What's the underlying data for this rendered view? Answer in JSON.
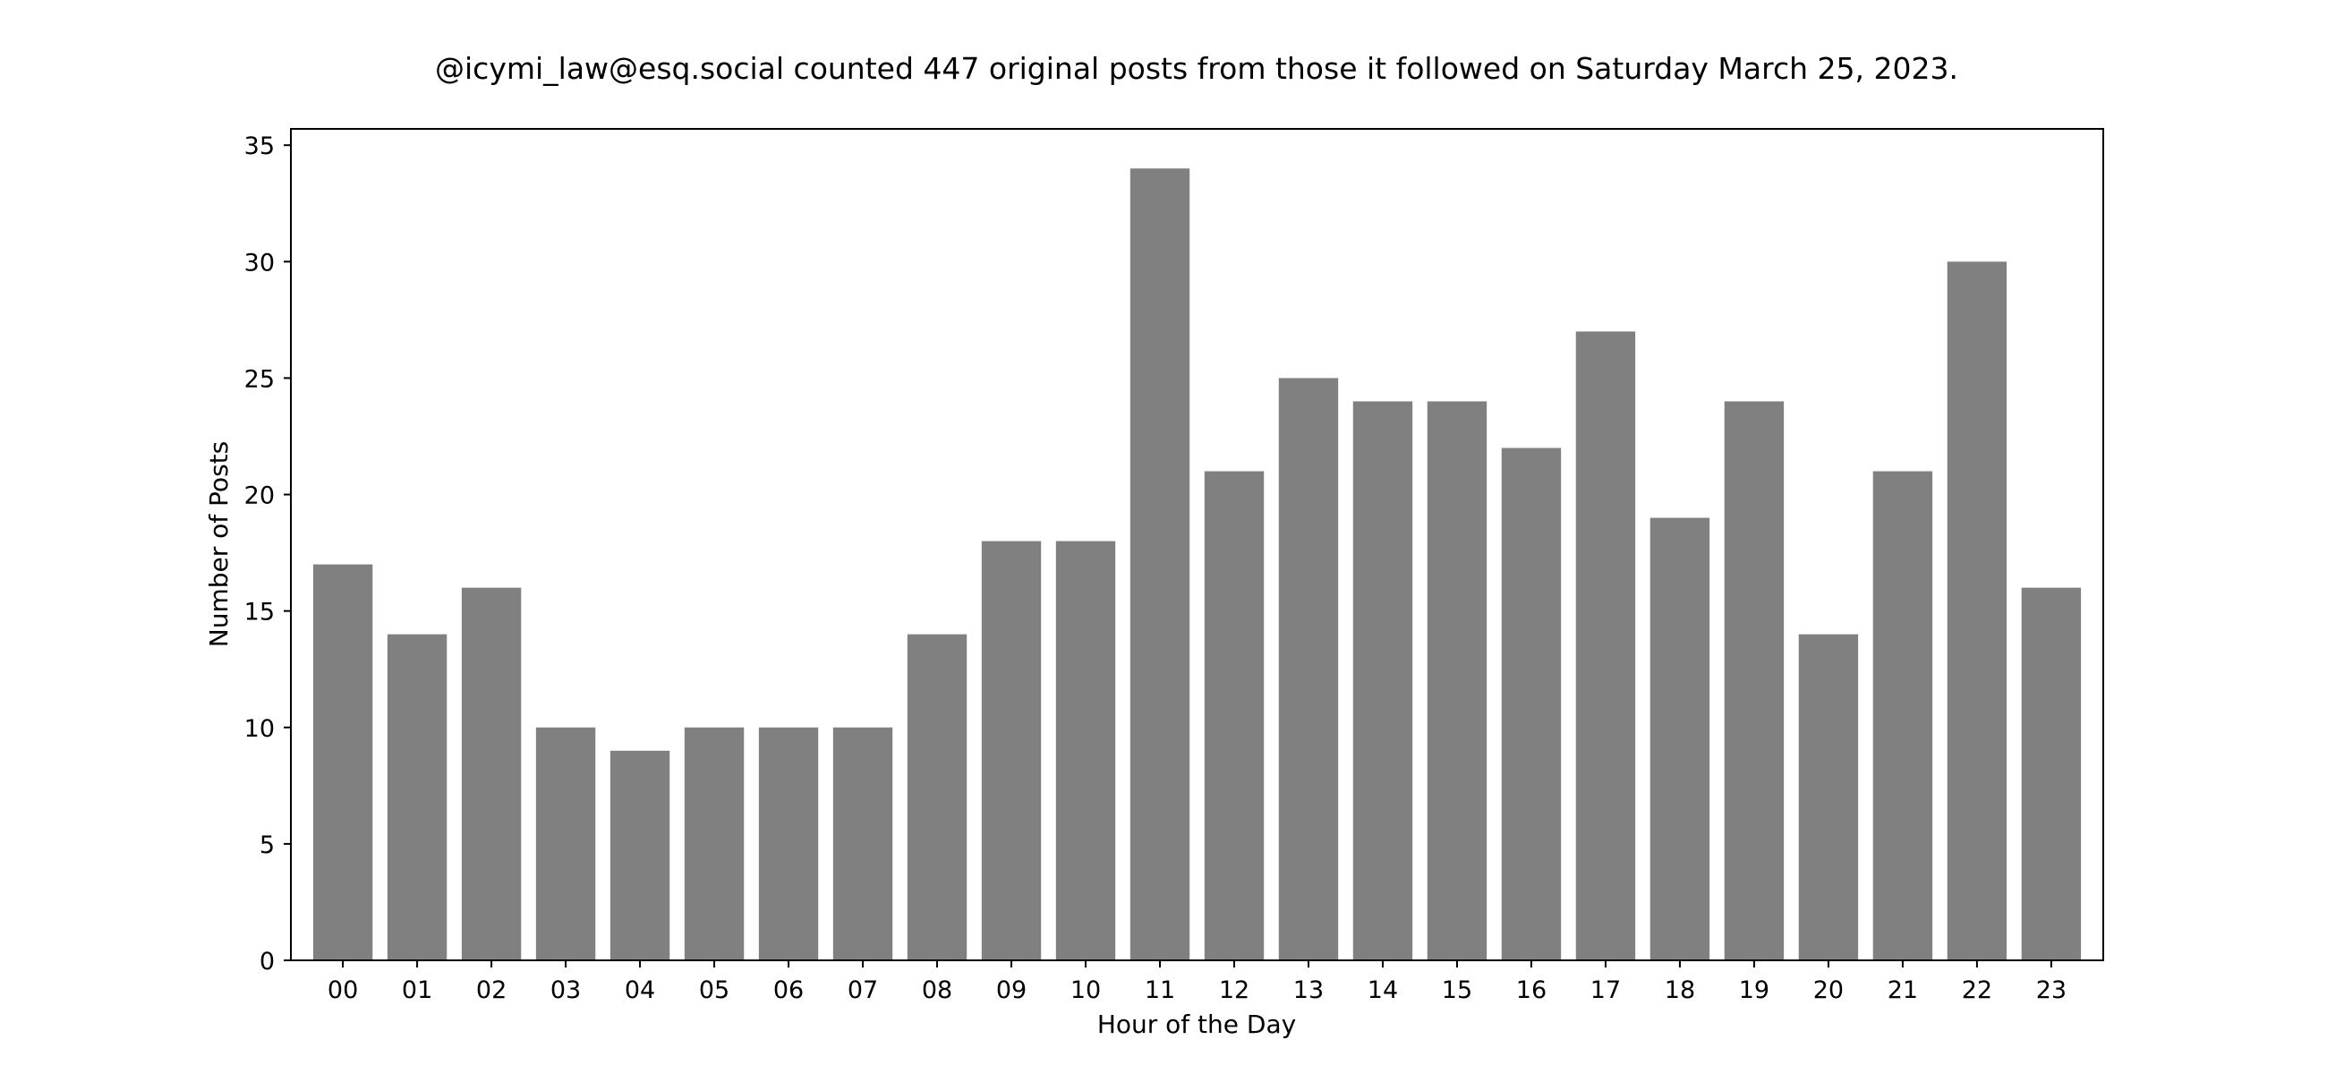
{
  "chart_data": {
    "type": "bar",
    "title": "@icymi_law@esq.social counted 447 original posts from those it followed on Saturday March 25, 2023.",
    "xlabel": "Hour of the Day",
    "ylabel": "Number of Posts",
    "categories": [
      "00",
      "01",
      "02",
      "03",
      "04",
      "05",
      "06",
      "07",
      "08",
      "09",
      "10",
      "11",
      "12",
      "13",
      "14",
      "15",
      "16",
      "17",
      "18",
      "19",
      "20",
      "21",
      "22",
      "23"
    ],
    "values": [
      17,
      14,
      16,
      10,
      9,
      10,
      10,
      10,
      14,
      18,
      18,
      34,
      21,
      25,
      24,
      24,
      22,
      27,
      19,
      24,
      14,
      21,
      30,
      16
    ],
    "ylim": [
      0,
      35.7
    ],
    "yticks": [
      "0",
      "5",
      "10",
      "15",
      "20",
      "25",
      "30",
      "35"
    ],
    "grid": false,
    "bar_color": "#808080"
  }
}
